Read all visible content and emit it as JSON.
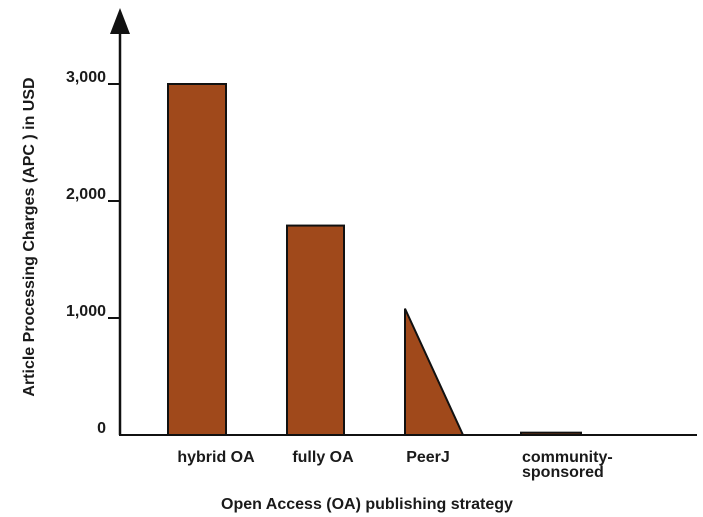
{
  "chart_data": {
    "type": "bar",
    "title": "",
    "xlabel": "Open Access (OA) publishing strategy",
    "ylabel": "Article Processing Charges (APC ) in USD",
    "ylim": [
      0,
      3400
    ],
    "yticks": [
      0,
      1000,
      2000,
      3000
    ],
    "ytick_labels": [
      "0",
      "1,000",
      "2,000",
      "3,000"
    ],
    "categories": [
      {
        "lines": [
          "hybrid OA"
        ]
      },
      {
        "lines": [
          "fully OA"
        ]
      },
      {
        "lines": [
          "PeerJ"
        ]
      },
      {
        "lines": [
          "community-",
          "sponsored"
        ]
      }
    ],
    "series": [
      {
        "values": [
          3000,
          1790,
          1080,
          20
        ],
        "shapes": [
          "bar",
          "bar",
          "declining-triangle",
          "bar"
        ]
      }
    ],
    "colors": {
      "bar_fill": "#a0491b",
      "stroke": "#111111"
    },
    "grid": false
  }
}
